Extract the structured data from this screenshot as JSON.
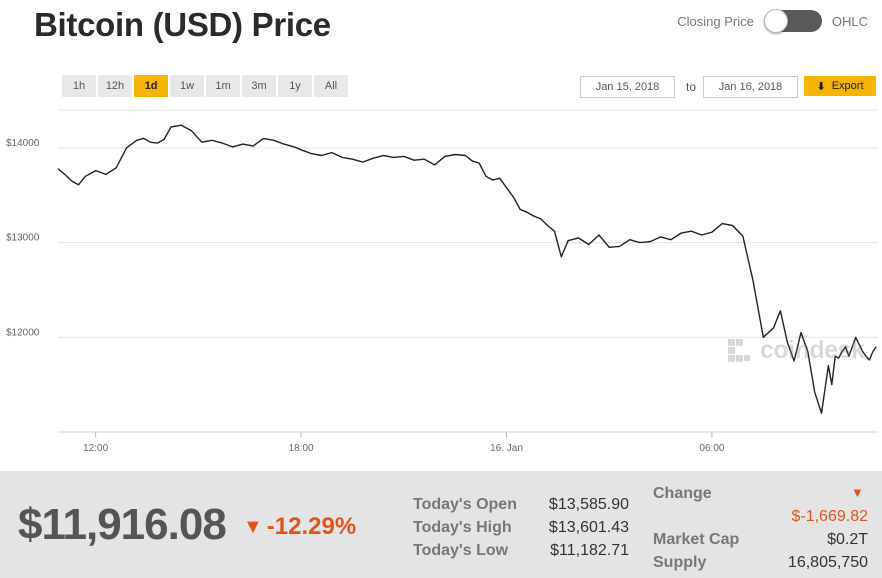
{
  "header": {
    "title": "Bitcoin (USD) Price",
    "toggle_left": "Closing Price",
    "toggle_right": "OHLC"
  },
  "toolbar": {
    "ranges": [
      "1h",
      "12h",
      "1d",
      "1w",
      "1m",
      "3m",
      "1y",
      "All"
    ],
    "active_range": "1d",
    "date_from": "Jan 15, 2018",
    "to_label": "to",
    "date_to": "Jan 16, 2018",
    "export_label": "Export"
  },
  "watermark": "coindesk",
  "colors": {
    "accent": "#f5b400",
    "down": "#e0541b",
    "line": "#222222",
    "grid": "#e3e3e3",
    "footer_bg": "#e4e4e4"
  },
  "icons": {
    "export": "download-arrow-icon",
    "change": "down-triangle-icon"
  },
  "chart_data": {
    "type": "line",
    "ylim": [
      11000,
      14400
    ],
    "y_ticks": [
      12000,
      13000,
      14000
    ],
    "y_tick_labels": [
      "$12000",
      "$13000",
      "$14000"
    ],
    "xlim": [
      10.9,
      34.85
    ],
    "x_ticks": [
      12,
      18,
      24,
      30
    ],
    "x_tick_labels": [
      "12:00",
      "18:00",
      "16. Jan",
      "06:00"
    ],
    "grid": true,
    "series": [
      {
        "x": [
          10.9,
          11.1,
          11.3,
          11.5,
          11.7,
          12.0,
          12.3,
          12.6,
          12.9,
          13.2,
          13.4,
          13.6,
          13.8,
          14.0,
          14.2,
          14.5,
          14.8,
          15.1,
          15.4,
          15.7,
          16.0,
          16.3,
          16.6,
          16.9,
          17.2,
          17.5,
          17.8,
          18.0,
          18.3,
          18.6,
          18.9,
          19.2,
          19.5,
          19.8,
          20.1,
          20.4,
          20.7,
          21.0,
          21.3,
          21.6,
          21.9,
          22.2,
          22.5,
          22.8,
          23.0,
          23.2,
          23.4,
          23.6,
          23.8,
          24.0,
          24.2,
          24.4,
          24.6,
          24.8,
          25.0,
          25.2,
          25.4,
          25.6,
          25.8,
          26.1,
          26.4,
          26.7,
          27.0,
          27.3,
          27.6,
          27.9,
          28.2,
          28.5,
          28.8,
          29.1,
          29.4,
          29.7,
          30.0,
          30.3,
          30.6,
          30.9,
          31.2,
          31.5,
          31.8,
          32.0,
          32.2,
          32.4,
          32.6,
          32.8,
          33.0,
          33.2,
          33.4,
          33.5,
          33.6,
          33.7,
          33.8,
          33.9,
          34.0,
          34.2,
          34.4,
          34.5,
          34.6,
          34.7,
          34.8
        ],
        "values": [
          13780,
          13720,
          13650,
          13610,
          13700,
          13760,
          13720,
          13790,
          14000,
          14080,
          14100,
          14060,
          14050,
          14090,
          14220,
          14240,
          14180,
          14060,
          14080,
          14050,
          14010,
          14040,
          14020,
          14100,
          14080,
          14040,
          14010,
          13980,
          13940,
          13920,
          13950,
          13900,
          13880,
          13850,
          13890,
          13920,
          13900,
          13910,
          13870,
          13880,
          13820,
          13910,
          13930,
          13920,
          13860,
          13840,
          13700,
          13660,
          13680,
          13580,
          13480,
          13350,
          13320,
          13280,
          13250,
          13180,
          13120,
          12850,
          13020,
          13050,
          12980,
          13080,
          12950,
          12960,
          13030,
          13000,
          13010,
          13060,
          13030,
          13100,
          13120,
          13080,
          13110,
          13200,
          13180,
          13070,
          12600,
          12000,
          12100,
          12280,
          11950,
          11750,
          12050,
          11850,
          11420,
          11200,
          11700,
          11500,
          11800,
          11780,
          11850,
          11900,
          11800,
          12000,
          11850,
          11800,
          11760,
          11850,
          11900
        ]
      }
    ]
  },
  "footer": {
    "price": "$11,916.08",
    "change_pct": "-12.29%",
    "today_open_label": "Today's Open",
    "today_open": "$13,585.90",
    "today_high_label": "Today's High",
    "today_high": "$13,601.43",
    "today_low_label": "Today's Low",
    "today_low": "$11,182.71",
    "change_label": "Change",
    "change_value": "$-1,669.82",
    "market_cap_label": "Market Cap",
    "market_cap": "$0.2T",
    "supply_label": "Supply",
    "supply": "16,805,750"
  }
}
